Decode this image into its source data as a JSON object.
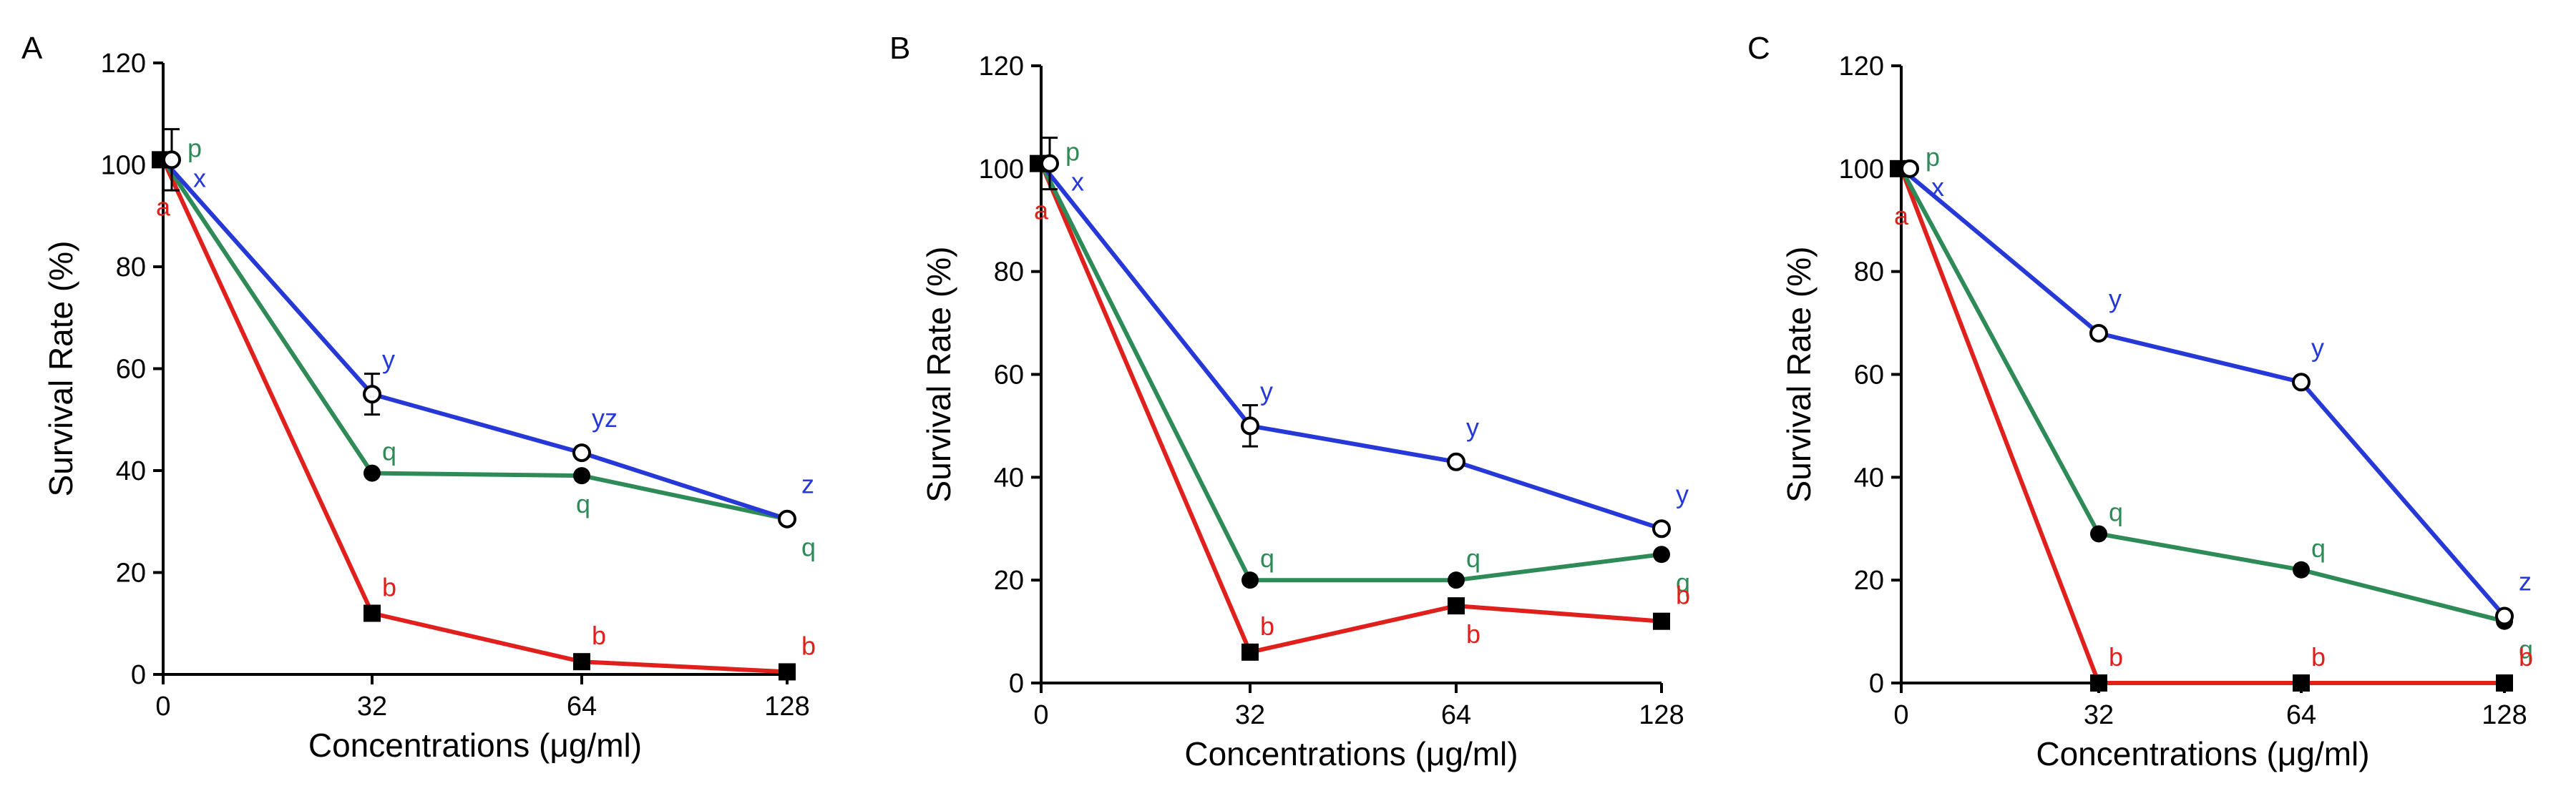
{
  "figure": {
    "background": "#ffffff"
  },
  "colors": {
    "red": "#e0201c",
    "green": "#2e8b57",
    "blue": "#2638d6",
    "black": "#000000"
  },
  "chart_data": [
    {
      "type": "line",
      "panel_label": "A",
      "xlabel": "Concentrations (μg/ml)",
      "ylabel": "Survival Rate (%)",
      "xlim": [
        0,
        128
      ],
      "ylim": [
        0,
        120
      ],
      "x_ticks": [
        0,
        32,
        64,
        128
      ],
      "y_ticks": [
        0,
        20,
        40,
        60,
        80,
        100,
        120
      ],
      "x_tick_labels": [
        "0",
        "32",
        "64",
        "128"
      ],
      "y_tick_labels": [
        "0",
        "20",
        "40",
        "60",
        "80",
        "100",
        "120"
      ],
      "grid": false,
      "legend": "none",
      "series": [
        {
          "color": "#2638d6",
          "marker": "open-circle",
          "points": [
            {
              "x": 0,
              "y": 101,
              "err": 6,
              "letter": "x"
            },
            {
              "x": 32,
              "y": 55,
              "err": 4,
              "letter": "y"
            },
            {
              "x": 64,
              "y": 43.5,
              "err": 0,
              "letter": "yz"
            },
            {
              "x": 128,
              "y": 30.5,
              "err": 0,
              "letter": "z"
            }
          ]
        },
        {
          "color": "#2e8b57",
          "marker": "filled-circle",
          "points": [
            {
              "x": 0,
              "y": 101,
              "err": 0,
              "letter": "p"
            },
            {
              "x": 32,
              "y": 39.5,
              "err": 0,
              "letter": "q"
            },
            {
              "x": 64,
              "y": 39,
              "err": 0,
              "letter": "q"
            },
            {
              "x": 128,
              "y": 30.5,
              "err": 0,
              "letter": "q"
            }
          ]
        },
        {
          "color": "#e0201c",
          "marker": "filled-square",
          "points": [
            {
              "x": 0,
              "y": 101,
              "err": 0,
              "letter": "a"
            },
            {
              "x": 32,
              "y": 12,
              "err": 0,
              "letter": "b"
            },
            {
              "x": 64,
              "y": 2.5,
              "err": 0,
              "letter": "b"
            },
            {
              "x": 128,
              "y": 0.5,
              "err": 0,
              "letter": "b"
            }
          ]
        }
      ]
    },
    {
      "type": "line",
      "panel_label": "B",
      "xlabel": "Concentrations (μg/ml)",
      "ylabel": "Survival Rate (%)",
      "xlim": [
        0,
        128
      ],
      "ylim": [
        0,
        120
      ],
      "x_ticks": [
        0,
        32,
        64,
        128
      ],
      "y_ticks": [
        0,
        20,
        40,
        60,
        80,
        100,
        120
      ],
      "x_tick_labels": [
        "0",
        "32",
        "64",
        "128"
      ],
      "y_tick_labels": [
        "0",
        "20",
        "40",
        "60",
        "80",
        "100",
        "120"
      ],
      "grid": false,
      "legend": "none",
      "series": [
        {
          "color": "#2638d6",
          "marker": "open-circle",
          "points": [
            {
              "x": 0,
              "y": 101,
              "err": 5,
              "letter": "x"
            },
            {
              "x": 32,
              "y": 50,
              "err": 4,
              "letter": "y"
            },
            {
              "x": 64,
              "y": 43,
              "err": 0,
              "letter": "y"
            },
            {
              "x": 128,
              "y": 30,
              "err": 0,
              "letter": "y"
            }
          ]
        },
        {
          "color": "#2e8b57",
          "marker": "filled-circle",
          "points": [
            {
              "x": 0,
              "y": 101,
              "err": 0,
              "letter": "p"
            },
            {
              "x": 32,
              "y": 20,
              "err": 0,
              "letter": "q"
            },
            {
              "x": 64,
              "y": 20,
              "err": 0,
              "letter": "q"
            },
            {
              "x": 128,
              "y": 25,
              "err": 0,
              "letter": "q"
            }
          ]
        },
        {
          "color": "#e0201c",
          "marker": "filled-square",
          "points": [
            {
              "x": 0,
              "y": 101,
              "err": 0,
              "letter": "a"
            },
            {
              "x": 32,
              "y": 6,
              "err": 0,
              "letter": "b"
            },
            {
              "x": 64,
              "y": 15,
              "err": 0,
              "letter": "b"
            },
            {
              "x": 128,
              "y": 12,
              "err": 0,
              "letter": "b"
            }
          ]
        }
      ]
    },
    {
      "type": "line",
      "panel_label": "C",
      "xlabel": "Concentrations (μg/ml)",
      "ylabel": "Survival Rate (%)",
      "xlim": [
        0,
        128
      ],
      "ylim": [
        0,
        120
      ],
      "x_ticks": [
        0,
        32,
        64,
        128
      ],
      "y_ticks": [
        0,
        20,
        40,
        60,
        80,
        100,
        120
      ],
      "x_tick_labels": [
        "0",
        "32",
        "64",
        "128"
      ],
      "y_tick_labels": [
        "0",
        "20",
        "40",
        "60",
        "80",
        "100",
        "120"
      ],
      "grid": false,
      "legend": "none",
      "series": [
        {
          "color": "#2638d6",
          "marker": "open-circle",
          "points": [
            {
              "x": 0,
              "y": 100,
              "err": 0,
              "letter": "x"
            },
            {
              "x": 32,
              "y": 68,
              "err": 0,
              "letter": "y"
            },
            {
              "x": 64,
              "y": 58.5,
              "err": 0,
              "letter": "y"
            },
            {
              "x": 128,
              "y": 13,
              "err": 0,
              "letter": "z"
            }
          ]
        },
        {
          "color": "#2e8b57",
          "marker": "filled-circle",
          "points": [
            {
              "x": 0,
              "y": 100,
              "err": 0,
              "letter": "p"
            },
            {
              "x": 32,
              "y": 29,
              "err": 0,
              "letter": "q"
            },
            {
              "x": 64,
              "y": 22,
              "err": 0,
              "letter": "q"
            },
            {
              "x": 128,
              "y": 12,
              "err": 0,
              "letter": "q"
            }
          ]
        },
        {
          "color": "#e0201c",
          "marker": "filled-square",
          "points": [
            {
              "x": 0,
              "y": 100,
              "err": 0,
              "letter": "a"
            },
            {
              "x": 32,
              "y": 0,
              "err": 0,
              "letter": "b"
            },
            {
              "x": 64,
              "y": 0,
              "err": 0,
              "letter": "b"
            },
            {
              "x": 128,
              "y": 0,
              "err": 0,
              "letter": "b"
            }
          ]
        }
      ]
    }
  ]
}
